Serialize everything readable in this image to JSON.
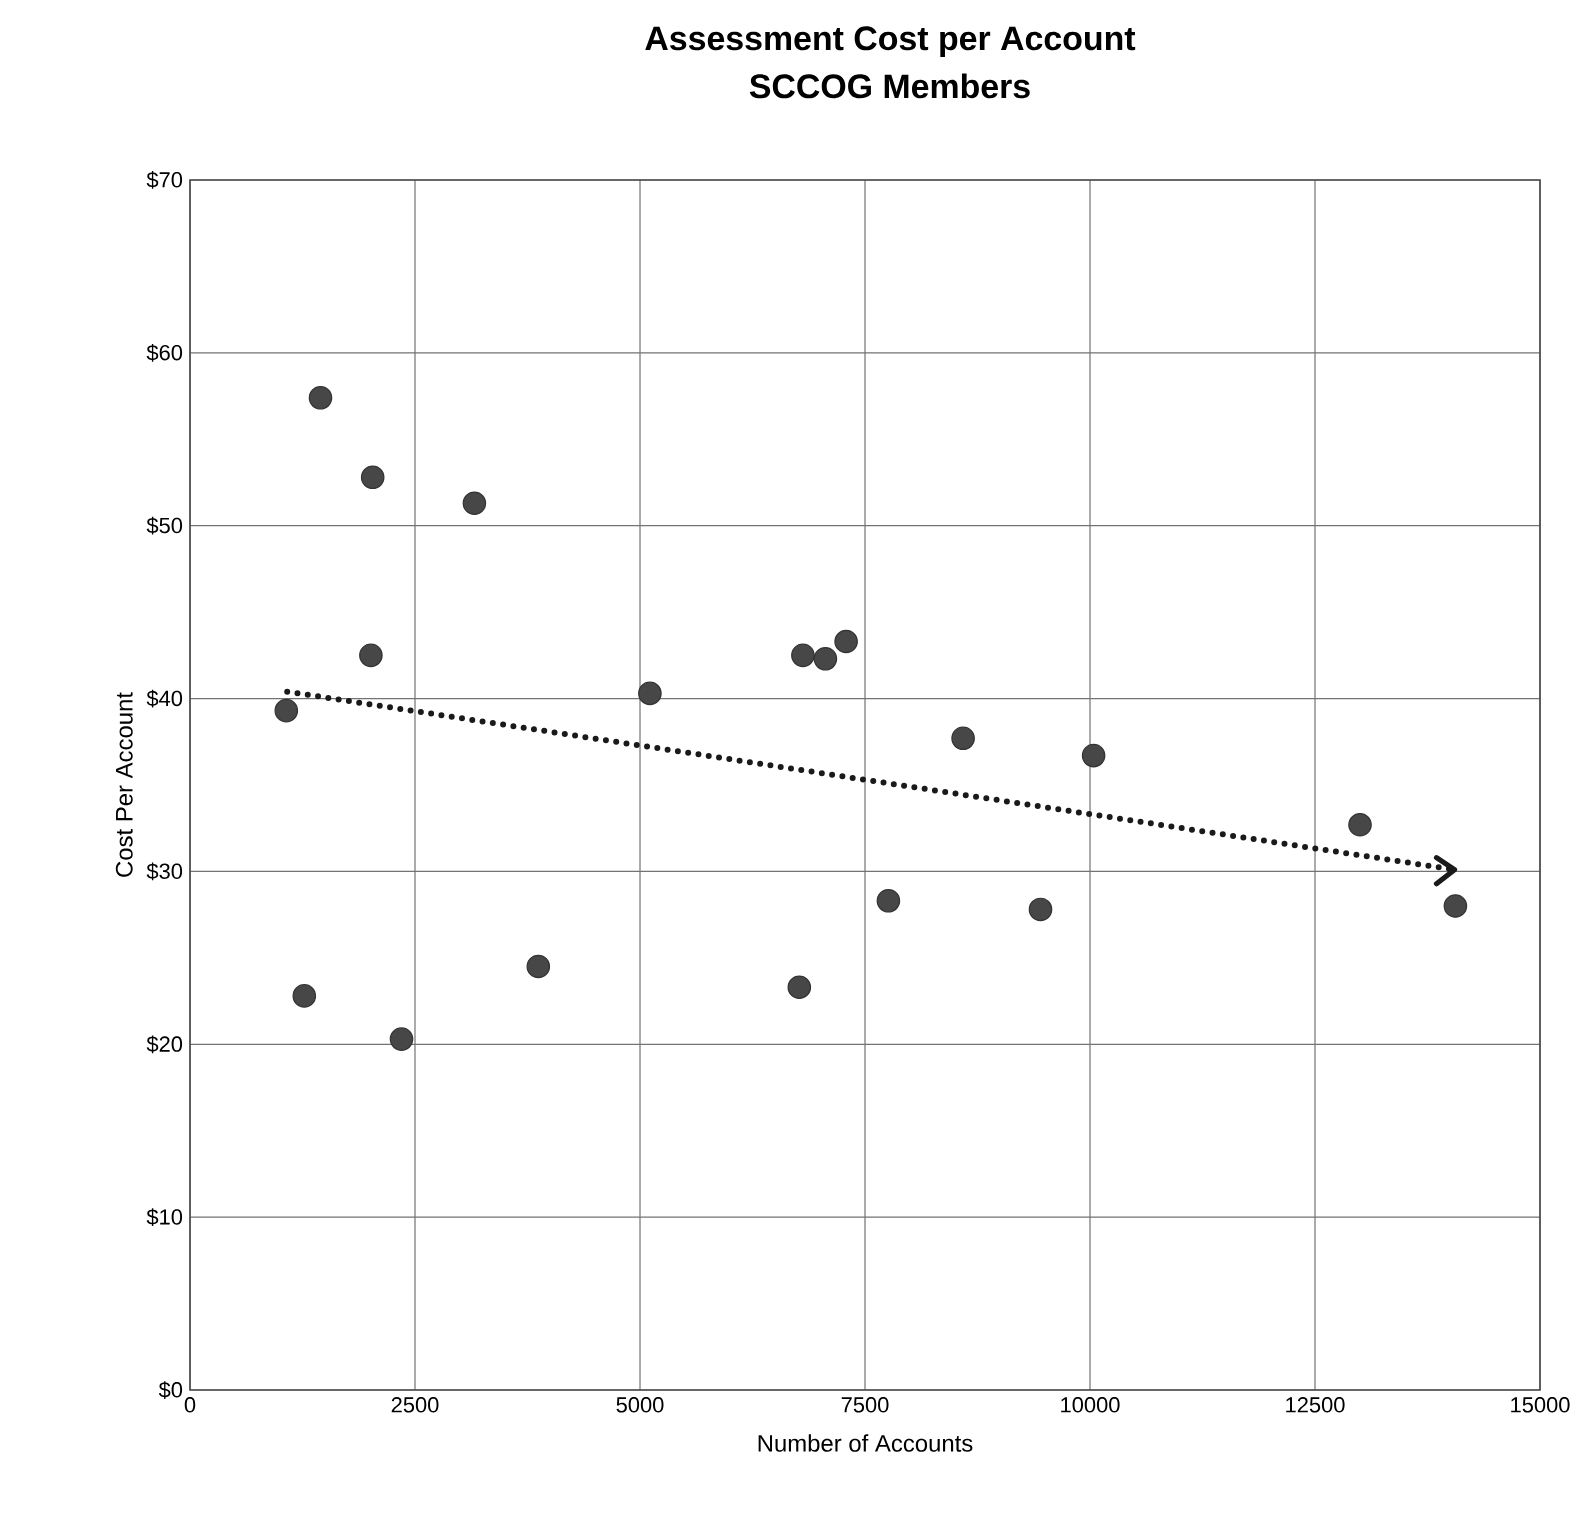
{
  "chart_data": {
    "type": "scatter",
    "title": "Assessment Cost per Account",
    "subtitle": "SCCOG Members",
    "xlabel": "Number of Accounts",
    "ylabel": "Cost Per Account",
    "xlim": [
      0,
      15000
    ],
    "xticks": [
      0,
      2500,
      5000,
      7500,
      10000,
      12500,
      15000
    ],
    "ylim": [
      0,
      70
    ],
    "yticks": [
      {
        "value": 0,
        "label": "$0"
      },
      {
        "value": 10,
        "label": "$10"
      },
      {
        "value": 20,
        "label": "$20"
      },
      {
        "value": 30,
        "label": "$30"
      },
      {
        "value": 40,
        "label": "$40"
      },
      {
        "value": 50,
        "label": "$50"
      },
      {
        "value": 60,
        "label": "$60"
      },
      {
        "value": 70,
        "label": "$70"
      }
    ],
    "grid": true,
    "series": [
      {
        "type": "scatter",
        "marker": "circle",
        "color": "#474747",
        "x": [
          1450,
          2030,
          3160,
          2010,
          1070,
          5110,
          6810,
          7060,
          7290,
          1270,
          2350,
          3870,
          6770,
          7760,
          8590,
          10040,
          13000,
          14060,
          9450
        ],
        "values": [
          57.4,
          52.8,
          51.3,
          42.5,
          39.3,
          40.3,
          42.5,
          42.3,
          43.3,
          22.8,
          20.3,
          24.5,
          23.3,
          28.3,
          37.7,
          36.7,
          32.7,
          28.0,
          27.8
        ]
      },
      {
        "type": "line",
        "color": "#1a1a1a",
        "line_style": "dotted",
        "marker": "none",
        "x": [
          1080,
          14050
        ],
        "values": [
          40.4,
          30.1
        ]
      }
    ]
  }
}
